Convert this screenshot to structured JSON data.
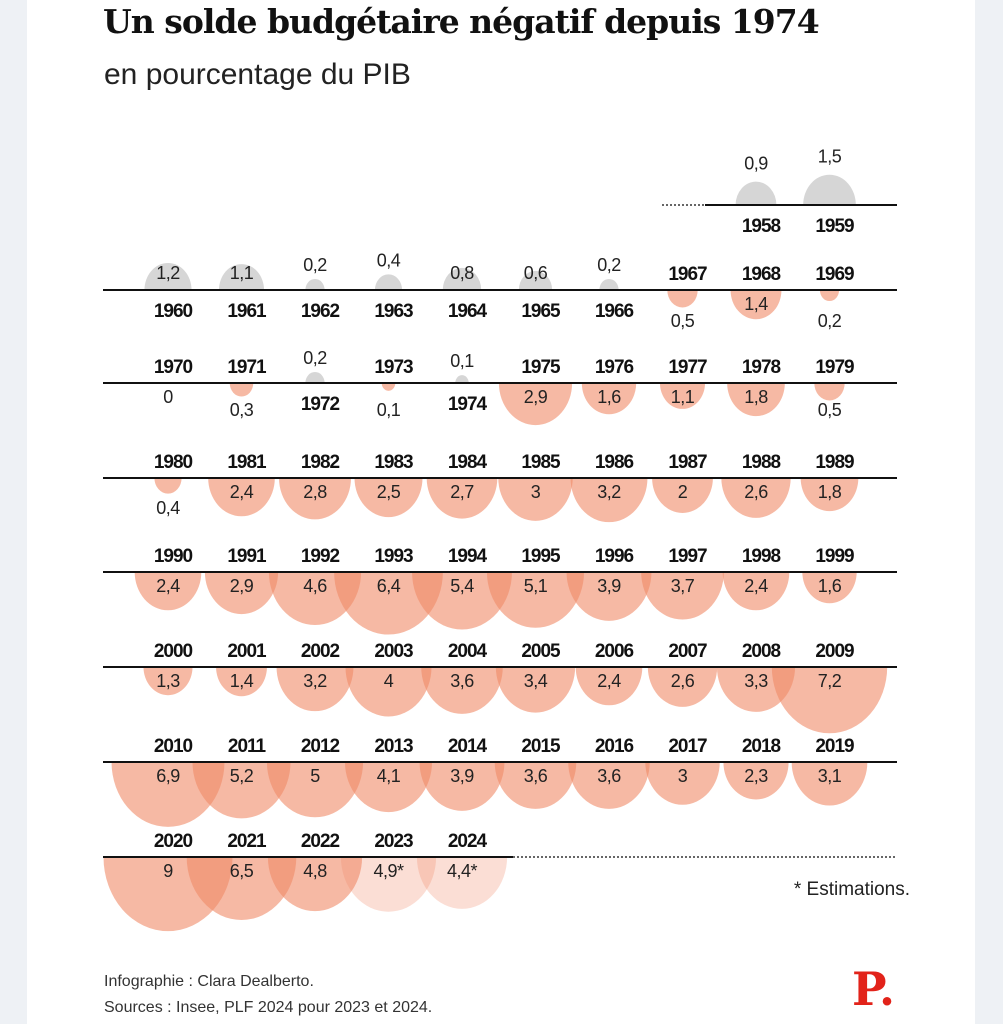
{
  "title": "Un solde budgétaire négatif depuis 1974",
  "subtitle": "en pourcentage du PIB",
  "footnote": "* Estimations.",
  "credit": "Infographie : Clara Dealberto.",
  "sources": "Sources : Insee, PLF 2024 pour 2023 et 2024.",
  "logo": "P.",
  "colors": {
    "surplus": "#cfcfcf",
    "deficit": "#f08a68",
    "estimate": "#f08a68",
    "line": "#111111"
  },
  "chart_data": {
    "type": "bubble-timeline",
    "title": "Un solde budgétaire négatif depuis 1974",
    "subtitle": "en pourcentage du PIB",
    "unit": "% du PIB",
    "sign_note": "positive = surplus (grey, above line), negative = deficit (salmon, below line)",
    "rows": [
      {
        "start_col": 8,
        "items": [
          {
            "year": "1958",
            "value": 0.9,
            "label": "0,9"
          },
          {
            "year": "1959",
            "value": 1.5,
            "label": "1,5"
          }
        ]
      },
      {
        "start_col": 0,
        "items": [
          {
            "year": "1960",
            "value": 1.2,
            "label": "1,2"
          },
          {
            "year": "1961",
            "value": 1.1,
            "label": "1,1"
          },
          {
            "year": "1962",
            "value": 0.2,
            "label": "0,2"
          },
          {
            "year": "1963",
            "value": 0.4,
            "label": "0,4"
          },
          {
            "year": "1964",
            "value": 0.8,
            "label": "0,8"
          },
          {
            "year": "1965",
            "value": 0.6,
            "label": "0,6"
          },
          {
            "year": "1966",
            "value": 0.2,
            "label": "0,2"
          },
          {
            "year": "1967",
            "value": -0.5,
            "label": "0,5"
          },
          {
            "year": "1968",
            "value": -1.4,
            "label": "1,4"
          },
          {
            "year": "1969",
            "value": -0.2,
            "label": "0,2"
          }
        ]
      },
      {
        "start_col": 0,
        "items": [
          {
            "year": "1970",
            "value": 0,
            "label": "0"
          },
          {
            "year": "1971",
            "value": -0.3,
            "label": "0,3"
          },
          {
            "year": "1972",
            "value": 0.2,
            "label": "0,2"
          },
          {
            "year": "1973",
            "value": -0.1,
            "label": "0,1"
          },
          {
            "year": "1974",
            "value": 0.1,
            "label": "0,1"
          },
          {
            "year": "1975",
            "value": -2.9,
            "label": "2,9"
          },
          {
            "year": "1976",
            "value": -1.6,
            "label": "1,6"
          },
          {
            "year": "1977",
            "value": -1.1,
            "label": "1,1"
          },
          {
            "year": "1978",
            "value": -1.8,
            "label": "1,8"
          },
          {
            "year": "1979",
            "value": -0.5,
            "label": "0,5"
          }
        ]
      },
      {
        "start_col": 0,
        "items": [
          {
            "year": "1980",
            "value": -0.4,
            "label": "0,4"
          },
          {
            "year": "1981",
            "value": -2.4,
            "label": "2,4"
          },
          {
            "year": "1982",
            "value": -2.8,
            "label": "2,8"
          },
          {
            "year": "1983",
            "value": -2.5,
            "label": "2,5"
          },
          {
            "year": "1984",
            "value": -2.7,
            "label": "2,7"
          },
          {
            "year": "1985",
            "value": -3,
            "label": "3"
          },
          {
            "year": "1986",
            "value": -3.2,
            "label": "3,2"
          },
          {
            "year": "1987",
            "value": -2,
            "label": "2"
          },
          {
            "year": "1988",
            "value": -2.6,
            "label": "2,6"
          },
          {
            "year": "1989",
            "value": -1.8,
            "label": "1,8"
          }
        ]
      },
      {
        "start_col": 0,
        "items": [
          {
            "year": "1990",
            "value": -2.4,
            "label": "2,4"
          },
          {
            "year": "1991",
            "value": -2.9,
            "label": "2,9"
          },
          {
            "year": "1992",
            "value": -4.6,
            "label": "4,6"
          },
          {
            "year": "1993",
            "value": -6.4,
            "label": "6,4"
          },
          {
            "year": "1994",
            "value": -5.4,
            "label": "5,4"
          },
          {
            "year": "1995",
            "value": -5.1,
            "label": "5,1"
          },
          {
            "year": "1996",
            "value": -3.9,
            "label": "3,9"
          },
          {
            "year": "1997",
            "value": -3.7,
            "label": "3,7"
          },
          {
            "year": "1998",
            "value": -2.4,
            "label": "2,4"
          },
          {
            "year": "1999",
            "value": -1.6,
            "label": "1,6"
          }
        ]
      },
      {
        "start_col": 0,
        "items": [
          {
            "year": "2000",
            "value": -1.3,
            "label": "1,3"
          },
          {
            "year": "2001",
            "value": -1.4,
            "label": "1,4"
          },
          {
            "year": "2002",
            "value": -3.2,
            "label": "3,2"
          },
          {
            "year": "2003",
            "value": -4,
            "label": "4"
          },
          {
            "year": "2004",
            "value": -3.6,
            "label": "3,6"
          },
          {
            "year": "2005",
            "value": -3.4,
            "label": "3,4"
          },
          {
            "year": "2006",
            "value": -2.4,
            "label": "2,4"
          },
          {
            "year": "2007",
            "value": -2.6,
            "label": "2,6"
          },
          {
            "year": "2008",
            "value": -3.3,
            "label": "3,3"
          },
          {
            "year": "2009",
            "value": -7.2,
            "label": "7,2"
          }
        ]
      },
      {
        "start_col": 0,
        "items": [
          {
            "year": "2010",
            "value": -6.9,
            "label": "6,9"
          },
          {
            "year": "2011",
            "value": -5.2,
            "label": "5,2"
          },
          {
            "year": "2012",
            "value": -5,
            "label": "5"
          },
          {
            "year": "2013",
            "value": -4.1,
            "label": "4,1"
          },
          {
            "year": "2014",
            "value": -3.9,
            "label": "3,9"
          },
          {
            "year": "2015",
            "value": -3.6,
            "label": "3,6"
          },
          {
            "year": "2016",
            "value": -3.6,
            "label": "3,6"
          },
          {
            "year": "2017",
            "value": -3,
            "label": "3"
          },
          {
            "year": "2018",
            "value": -2.3,
            "label": "2,3"
          },
          {
            "year": "2019",
            "value": -3.1,
            "label": "3,1"
          }
        ]
      },
      {
        "start_col": 0,
        "items": [
          {
            "year": "2020",
            "value": -9,
            "label": "9"
          },
          {
            "year": "2021",
            "value": -6.5,
            "label": "6,5"
          },
          {
            "year": "2022",
            "value": -4.8,
            "label": "4,8"
          },
          {
            "year": "2023",
            "value": -4.9,
            "label": "4,9*",
            "estimate": true
          },
          {
            "year": "2024",
            "value": -4.4,
            "label": "4,4*",
            "estimate": true
          }
        ]
      }
    ]
  }
}
